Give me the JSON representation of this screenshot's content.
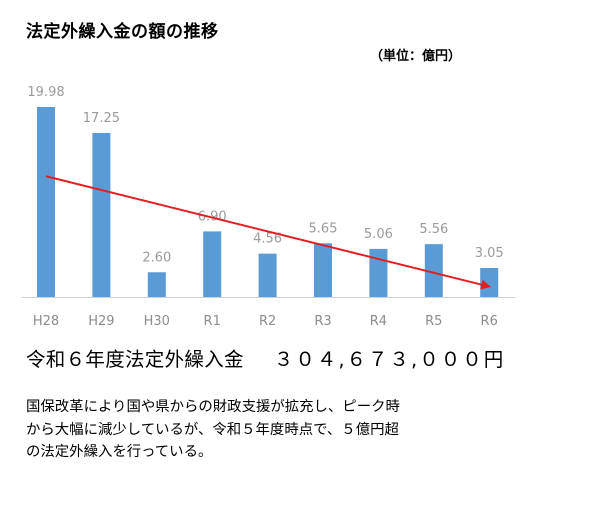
{
  "chart_data": {
    "type": "bar",
    "title": "法定外繰入金の額の推移",
    "unit": "（単位：億円）",
    "categories": [
      "H28",
      "H29",
      "H30",
      "R1",
      "R2",
      "R3",
      "R4",
      "R5",
      "R6"
    ],
    "values": [
      19.98,
      17.25,
      2.6,
      6.9,
      4.56,
      5.65,
      5.06,
      5.56,
      3.05
    ],
    "value_labels": [
      "19.98",
      "17.25",
      "2.60",
      "6.90",
      "4.56",
      "5.65",
      "5.06",
      "5.56",
      "3.05"
    ],
    "ylim": [
      0,
      19.98
    ],
    "bar_color": "#5b9bd5",
    "trend_color": "#e02020",
    "trend": {
      "from": {
        "category": "H28",
        "value": 12.7
      },
      "to": {
        "category": "R6",
        "value": 1.1
      }
    },
    "grid": false,
    "legend": "none"
  },
  "summary": {
    "label": "令和６年度法定外繰入金",
    "amount": "３０４,６７３,０００円"
  },
  "note": {
    "lines": [
      "国保改革により国や県からの財政支援が拡充し、ピーク時",
      "から大幅に減少しているが、令和５年度時点で、５億円超",
      "の法定外繰入を行っている。"
    ]
  }
}
